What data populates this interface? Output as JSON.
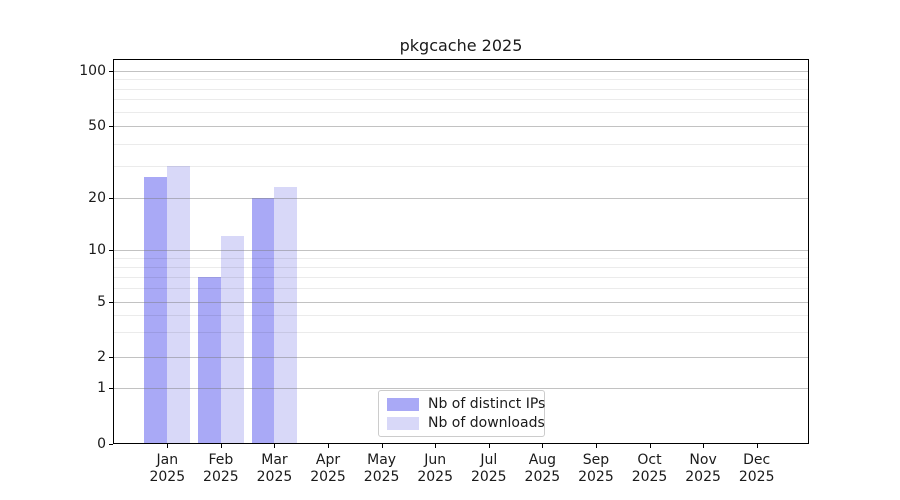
{
  "chart_data": {
    "type": "bar",
    "title": "pkgcache 2025",
    "year": "2025",
    "categories": [
      "Jan",
      "Feb",
      "Mar",
      "Apr",
      "May",
      "Jun",
      "Jul",
      "Aug",
      "Sep",
      "Oct",
      "Nov",
      "Dec"
    ],
    "series": [
      {
        "name": "Nb of distinct IPs",
        "color": "#a9a9f6",
        "values": [
          26,
          7,
          20,
          0,
          0,
          0,
          0,
          0,
          0,
          0,
          0,
          0
        ]
      },
      {
        "name": "Nb of downloads",
        "color": "#d8d8f8",
        "values": [
          30,
          12,
          23,
          0,
          0,
          0,
          0,
          0,
          0,
          0,
          0,
          0
        ]
      }
    ],
    "y_axis": {
      "major_ticks": [
        0,
        1,
        2,
        5,
        10,
        20,
        50,
        100
      ],
      "minor_gridlines": [
        3,
        4,
        6,
        7,
        8,
        9,
        30,
        40,
        60,
        70,
        80,
        90
      ],
      "scale": "log-like, linear below 1, zero shown at baseline",
      "ylim_top": 115
    },
    "grid": "on",
    "legend_position": "lower center, inside plot",
    "colors": {
      "background": "#ffffff",
      "axis": "#000000",
      "grid_major": "#c2c2c2",
      "grid_minor": "#ebebeb",
      "text": "#1a1a1a",
      "legend_border": "#cccccc"
    }
  }
}
